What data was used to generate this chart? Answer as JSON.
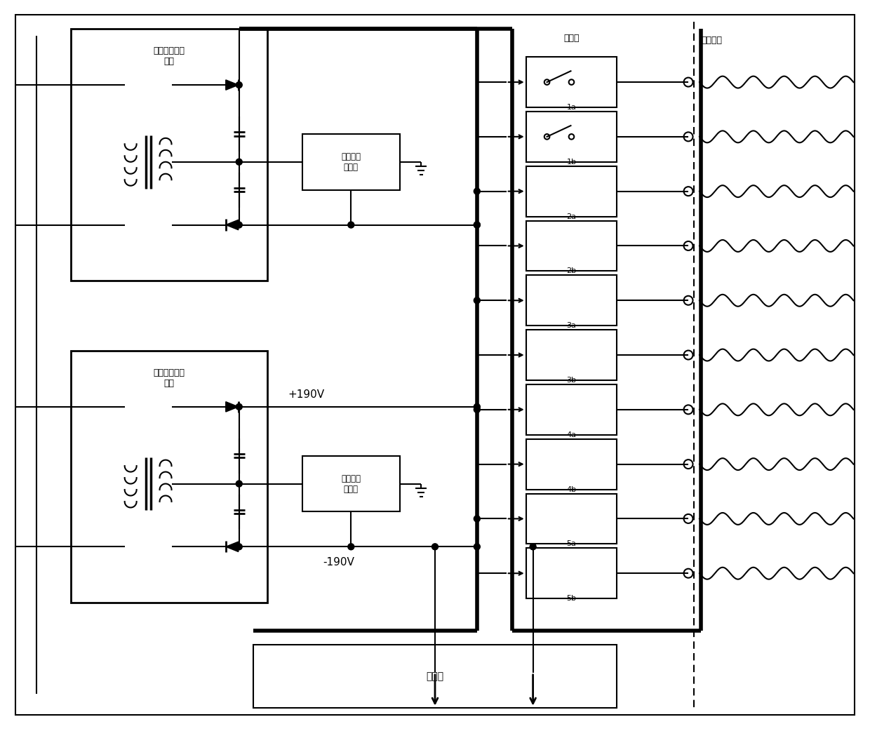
{
  "bg_color": "#ffffff",
  "fig_width": 12.4,
  "fig_height": 10.42,
  "labels": {
    "second_power": "第二功率变换\n电路",
    "first_power": "第一功率变换\n电路",
    "second_leak": "第二漏电\n指示器",
    "first_leak": "第一漏电\n指示器",
    "relay": "继电器",
    "output_port": "输出端口",
    "controller": "控制器",
    "plus190": "+190V",
    "minus190": "-190V",
    "relay_labels": [
      "1a",
      "1b",
      "2a",
      "2b",
      "3a",
      "3b",
      "4a",
      "4b",
      "5a",
      "5b"
    ]
  }
}
